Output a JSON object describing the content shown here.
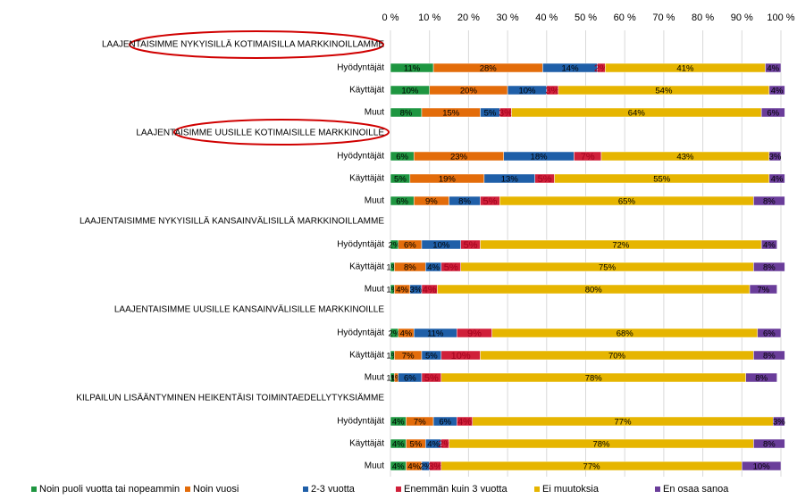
{
  "chart_data": {
    "type": "stacked-bar-horizontal",
    "group_titles": [
      "LAAJENTAISIMME NYKYISILLÄ KOTIMAISILLA MARKKINOILLAMME",
      "LAAJENTAISIMME UUSILLE KOTIMAISILLE MARKKINOILLE",
      "LAAJENTAISIMME NYKYISILLÄ KANSAINVÄLISILLÄ MARKKINOILLAMME",
      "LAAJENTAISIMME UUSILLE KANSAINVÄLISILLE MARKKINOILLE",
      "KILPAILUN LISÄÄNTYMINEN HEIKENTÄISI TOIMINTAEDELLYTYKSIÄMME"
    ],
    "categories": [
      "Hyödyntäjät",
      "Käyttäjät",
      "Muut",
      "Hyödyntäjät",
      "Käyttäjät",
      "Muut",
      "Hyödyntäjät",
      "Käyttäjät",
      "Muut",
      "Hyödyntäjät",
      "Käyttäjät",
      "Muut",
      "Hyödyntäjät",
      "Käyttäjät",
      "Muut"
    ],
    "series": [
      {
        "name": "Noin puoli vuotta tai nopeammin",
        "color": "#1e9640",
        "values": [
          11,
          10,
          8,
          6,
          5,
          6,
          2,
          1,
          1,
          2,
          1,
          1,
          4,
          4,
          4
        ],
        "value_labels": [
          "11%",
          "10%",
          "8%",
          "6%",
          "5%",
          "6%",
          "2%",
          "1%",
          "1%",
          "2%",
          "1%",
          "1%",
          "4%",
          "4%",
          "4%"
        ]
      },
      {
        "name": "Noin vuosi",
        "color": "#e36c0a",
        "values": [
          28,
          20,
          15,
          23,
          19,
          9,
          6,
          8,
          4,
          4,
          7,
          1,
          7,
          5,
          4
        ],
        "value_labels": [
          "28%",
          "20%",
          "15%",
          "23%",
          "19%",
          "9%",
          "6%",
          "8%",
          "4%",
          "4%",
          "7%",
          "1%",
          "7%",
          "5%",
          "4%"
        ]
      },
      {
        "name": "2-3 vuotta",
        "color": "#1f5fa8",
        "values": [
          14,
          10,
          5,
          18,
          13,
          8,
          10,
          4,
          3,
          11,
          5,
          6,
          6,
          4,
          2
        ],
        "value_labels": [
          "14%",
          "10%",
          "5%",
          "18%",
          "13%",
          "8%",
          "10%",
          "4%",
          "3%",
          "11%",
          "5%",
          "6%",
          "6%",
          "4%",
          "2%"
        ]
      },
      {
        "name": "Enemmän kuin 3 vuotta",
        "color": "#d0203a",
        "values": [
          2,
          3,
          3,
          7,
          5,
          5,
          5,
          5,
          4,
          9,
          10,
          5,
          4,
          2,
          3
        ],
        "value_labels": [
          "2%",
          "3%",
          "3%",
          "7%",
          "5%",
          "5%",
          "5%",
          "5%",
          "4%",
          "9%",
          "10%",
          "5%",
          "4%",
          "2%",
          "3%"
        ]
      },
      {
        "name": "Ei muutoksia",
        "color": "#e6b500",
        "values": [
          41,
          54,
          64,
          43,
          55,
          65,
          72,
          75,
          80,
          68,
          70,
          78,
          77,
          78,
          77
        ],
        "value_labels": [
          "41%",
          "54%",
          "64%",
          "43%",
          "55%",
          "65%",
          "72%",
          "75%",
          "80%",
          "68%",
          "70%",
          "78%",
          "77%",
          "78%",
          "77%"
        ]
      },
      {
        "name": "En osaa sanoa",
        "color": "#6a3d9a",
        "values": [
          4,
          4,
          6,
          3,
          4,
          8,
          4,
          8,
          7,
          6,
          8,
          8,
          3,
          8,
          10
        ],
        "value_labels": [
          "4%",
          "4%",
          "6%",
          "3%",
          "4%",
          "8%",
          "4%",
          "8%",
          "7%",
          "6%",
          "8%",
          "8%",
          "3%",
          "8%",
          "10%"
        ]
      }
    ],
    "xlim": [
      0,
      100
    ],
    "xticks": [
      {
        "value": 0,
        "label": "0 %"
      },
      {
        "value": 10,
        "label": "10 %"
      },
      {
        "value": 20,
        "label": "20 %"
      },
      {
        "value": 30,
        "label": "30 %"
      },
      {
        "value": 40,
        "label": "40 %"
      },
      {
        "value": 50,
        "label": "50 %"
      },
      {
        "value": 60,
        "label": "60 %"
      },
      {
        "value": 70,
        "label": "70 %"
      },
      {
        "value": 80,
        "label": "80 %"
      },
      {
        "value": 90,
        "label": "90 %"
      },
      {
        "value": 100,
        "label": "100 %"
      }
    ],
    "grid": true
  }
}
